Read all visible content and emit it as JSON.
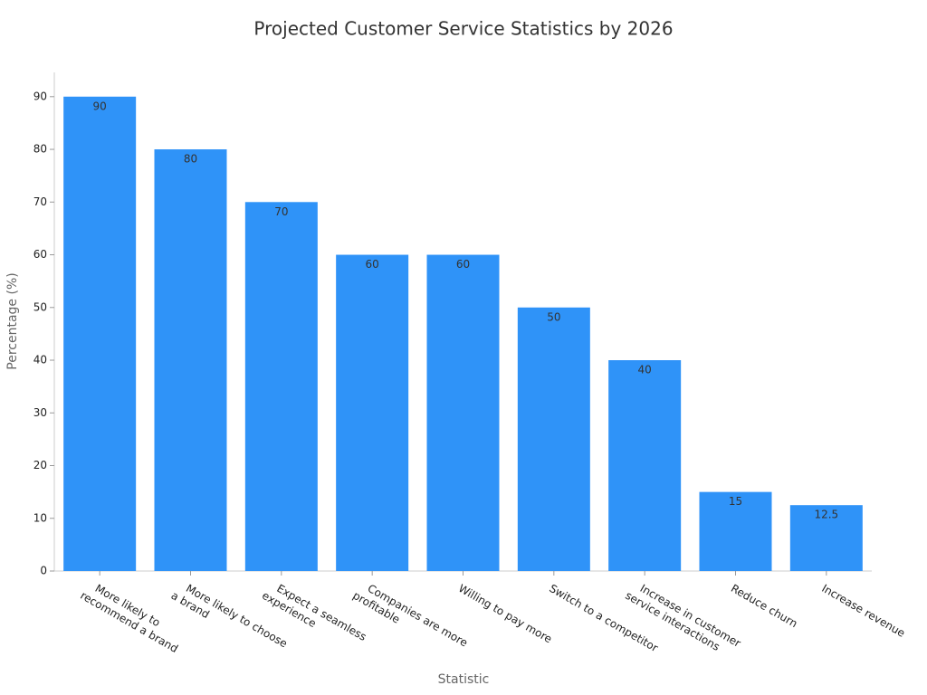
{
  "chart_data": {
    "type": "bar",
    "title": "Projected Customer Service Statistics by 2026",
    "x_label": "Statistic",
    "y_label": "Percentage (%)",
    "categories": [
      "More likely to recommend a brand",
      "More likely to choose a brand",
      "Expect a seamless experience",
      "Companies are more profitable",
      "Willing to pay more",
      "Switch to a competitor",
      "Increase in customer service interactions",
      "Reduce churn",
      "Increase revenue"
    ],
    "values": [
      90,
      80,
      70,
      60,
      60,
      50,
      40,
      15,
      12.5
    ],
    "color": "#2f93f8",
    "ylim": [
      0,
      94.6
    ],
    "yticks": [
      0,
      10,
      20,
      30,
      40,
      50,
      60,
      70,
      80,
      90
    ],
    "grid": false
  }
}
